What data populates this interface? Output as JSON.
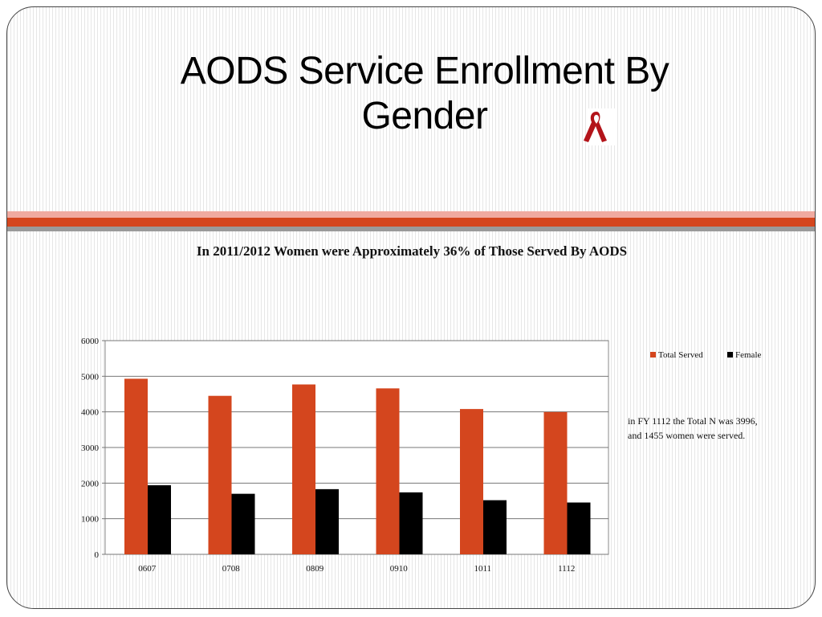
{
  "slide": {
    "title_line1": "AODS Service Enrollment By",
    "title_line2": "Gender",
    "ribbon_icon": "red-awareness-ribbon",
    "subtitle": "In 2011/2012 Women were  Approximately 36% of Those Served By AODS",
    "note": "in FY 1112 the  Total N was 3996, and 1455 women were served.",
    "colors": {
      "band_pink": "#f0aaa0",
      "band_orange": "#d4461e",
      "band_grey": "#9a9a9a"
    }
  },
  "chart_data": {
    "type": "bar",
    "categories": [
      "0607",
      "0708",
      "0809",
      "0910",
      "1011",
      "1112"
    ],
    "series": [
      {
        "name": "Total Served",
        "color": "#d4461e",
        "values": [
          4930,
          4450,
          4770,
          4660,
          4080,
          3996
        ]
      },
      {
        "name": "Female",
        "color": "#000000",
        "values": [
          1940,
          1700,
          1830,
          1740,
          1520,
          1455
        ]
      }
    ],
    "yticks": [
      0,
      1000,
      2000,
      3000,
      4000,
      5000,
      6000
    ],
    "ylim": [
      0,
      6000
    ],
    "grid": true,
    "legend": "top-right"
  }
}
